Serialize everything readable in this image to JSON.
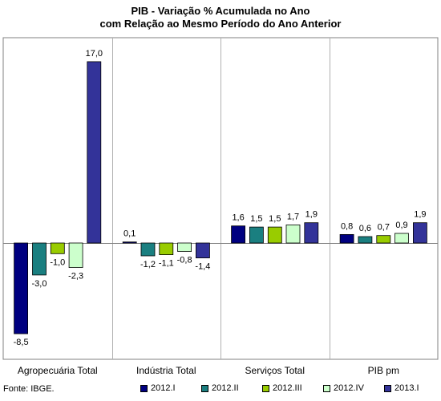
{
  "chart_data": {
    "type": "bar",
    "title": [
      "PIB - Variação % Acumulada no Ano",
      "com Relação ao Mesmo Período do Ano Anterior"
    ],
    "categories": [
      "Agropecuária Total",
      "Indústria Total",
      "Serviços Total",
      "PIB pm"
    ],
    "series": [
      {
        "name": "2012.I",
        "color": "#000080",
        "values": [
          -8.5,
          0.1,
          1.6,
          0.8
        ],
        "labels": [
          "-8,5",
          "0,1",
          "1,6",
          "0,8"
        ]
      },
      {
        "name": "2012.II",
        "color": "#1a7f80",
        "values": [
          -3.0,
          -1.2,
          1.5,
          0.6
        ],
        "labels": [
          "-3,0",
          "-1,2",
          "1,5",
          "0,6"
        ]
      },
      {
        "name": "2012.III",
        "color": "#99cc00",
        "values": [
          -1.0,
          -1.1,
          1.5,
          0.7
        ],
        "labels": [
          "-1,0",
          "-1,1",
          "1,5",
          "0,7"
        ]
      },
      {
        "name": "2012.IV",
        "color": "#ccffcc",
        "values": [
          -2.3,
          -0.8,
          1.7,
          0.9
        ],
        "labels": [
          "-2,3",
          "-0,8",
          "1,7",
          "0,9"
        ]
      },
      {
        "name": "2013.I",
        "color": "#333399",
        "values": [
          17.0,
          -1.4,
          1.9,
          1.9
        ],
        "labels": [
          "17,0",
          "-1,4",
          "1,9",
          "1,9"
        ]
      }
    ],
    "ylim": [
      -10.5,
      19.5
    ],
    "legend_position": "bottom-right",
    "source": "Fonte: IBGE."
  }
}
